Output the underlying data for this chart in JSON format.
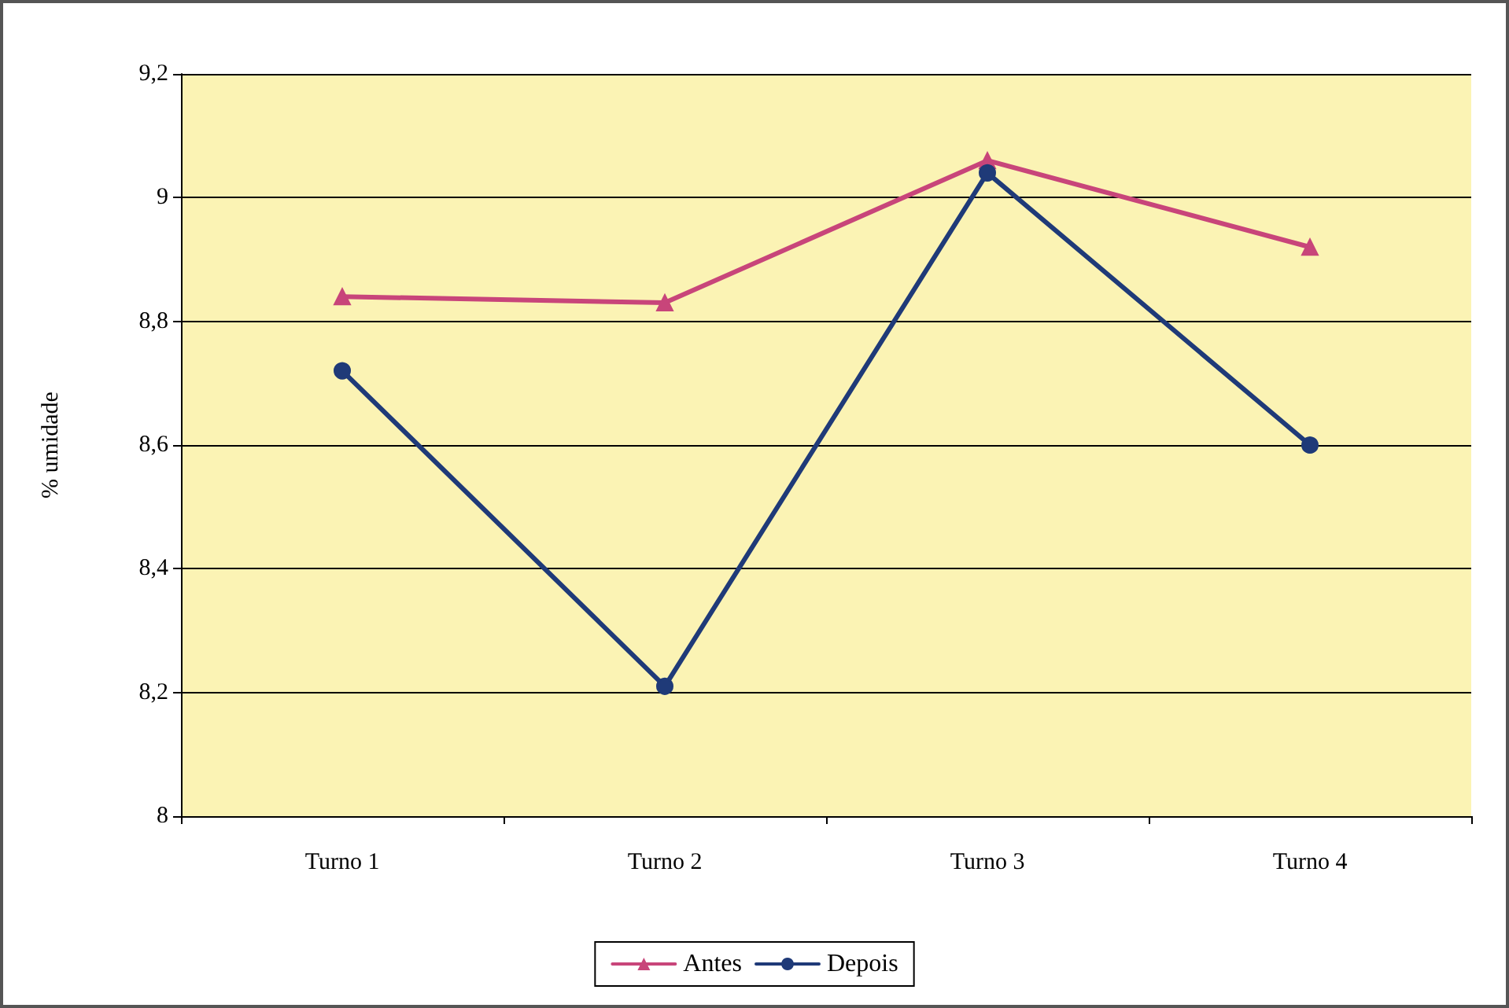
{
  "chart_data": {
    "type": "line",
    "ylabel": "% umidade",
    "categories": [
      "Turno 1",
      "Turno 2",
      "Turno 3",
      "Turno 4"
    ],
    "series": [
      {
        "name": "Antes",
        "color": "#c8457a",
        "marker": "triangle",
        "values": [
          8.84,
          8.83,
          9.06,
          8.92
        ]
      },
      {
        "name": "Depois",
        "color": "#1f3a78",
        "marker": "circle",
        "values": [
          8.72,
          8.21,
          9.04,
          8.6
        ]
      }
    ],
    "ylim": [
      8,
      9.2
    ],
    "yticks": [
      8,
      {
        "value": 8.2,
        "label": "8,2"
      },
      {
        "value": 8.4,
        "label": "8,4"
      },
      {
        "value": 8.6,
        "label": "8,6"
      },
      {
        "value": 8.8,
        "label": "8,8"
      },
      9,
      {
        "value": 9.2,
        "label": "9,2"
      }
    ],
    "grid": "y",
    "legend": "bottom",
    "line_style": "solid"
  }
}
